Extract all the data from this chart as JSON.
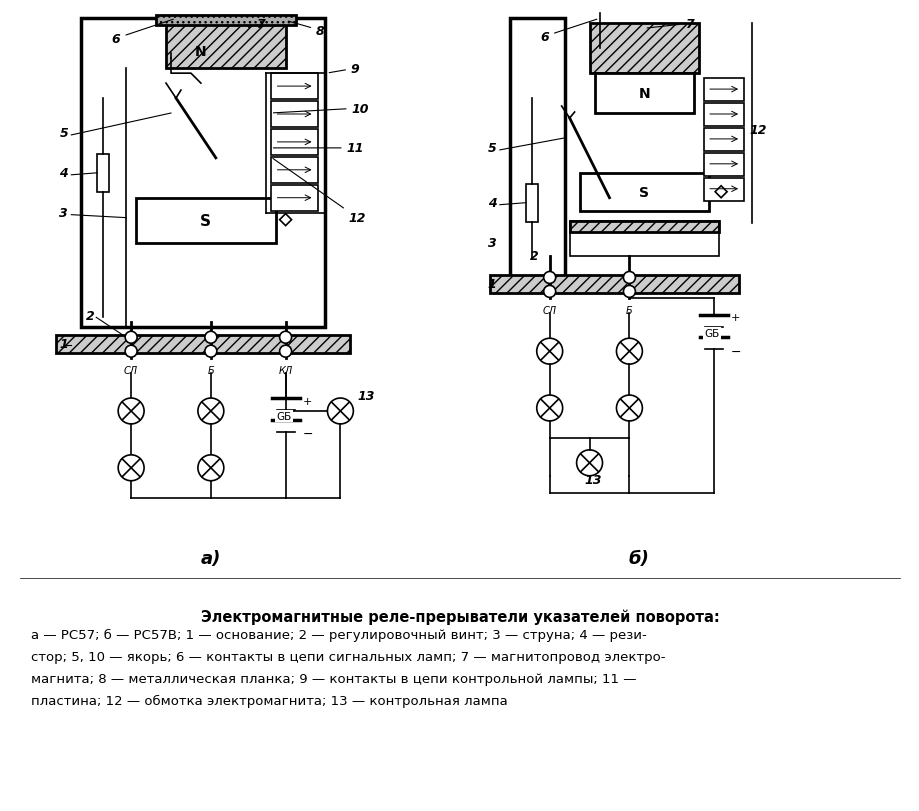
{
  "title_bold": "Электромагнитные реле-прерыватели указателей поворота:",
  "caption_line1": "а — РС57; б — РС57В; 1 — основание; 2 — регулировочный винт; 3 — струна; 4 — рези-",
  "caption_line2": "стор; 5, 10 — якорь; 6 — контакты в цепи сигнальных ламп; 7 — магнитопровод электро-",
  "caption_line3": "магнита; 8 — металлическая планка; 9 — контакты в цепи контрольной лампы; 11 —",
  "caption_line4": "пластина; 12 — обмотка электромагнита; 13 — контрольная лампа",
  "label_a": "а)",
  "label_b": "б)",
  "bg_color": "#ffffff",
  "text_color": "#000000",
  "figure_width": 9.2,
  "figure_height": 8.12,
  "dpi": 100
}
